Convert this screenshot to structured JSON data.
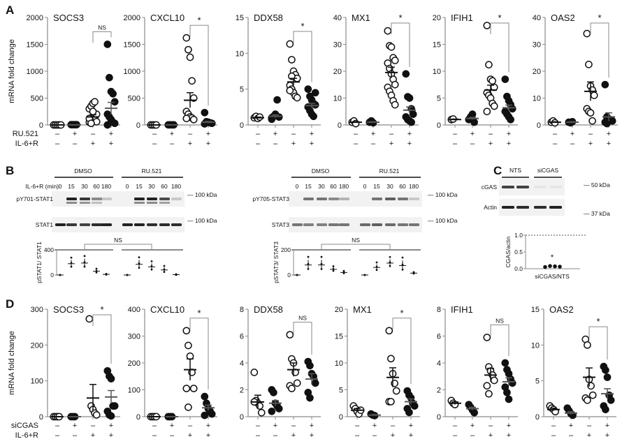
{
  "panel_letters": {
    "a": "A",
    "b": "B",
    "c": "C",
    "d": "D"
  },
  "chart_data": [
    {
      "type": "scatter",
      "panel": "A",
      "ylabel": "mRNA fold change",
      "row_labels": [
        "RU.521",
        "IL-6+R"
      ],
      "row_signs": [
        [
          "–",
          "+",
          "–",
          "+"
        ],
        [
          "–",
          "–",
          "+",
          "+"
        ]
      ],
      "group_fill": [
        "open",
        "filled",
        "open",
        "filled"
      ],
      "plots": [
        {
          "title": "SOCS3",
          "ylim": [
            0,
            2000
          ],
          "ticks": [
            0,
            500,
            1000,
            1500,
            2000
          ],
          "sig": "NS",
          "groups": [
            [
              0,
              0,
              0,
              0,
              0
            ],
            [
              5,
              5,
              5,
              5
            ],
            [
              50,
              80,
              100,
              150,
              200,
              300,
              350,
              400,
              430,
              60,
              120,
              30,
              250
            ],
            [
              1500,
              880,
              620,
              580,
              430,
              200,
              150,
              100,
              50,
              30,
              0
            ]
          ],
          "mean": [
            0,
            2,
            150,
            310
          ],
          "sem": [
            0,
            1,
            40,
            110
          ]
        },
        {
          "title": "CXCL10",
          "ylim": [
            0,
            2000
          ],
          "ticks": [
            0,
            500,
            1000,
            1500,
            2000
          ],
          "sig": "*",
          "groups": [
            [
              0,
              0,
              0,
              0
            ],
            [
              2,
              2,
              2,
              2
            ],
            [
              1620,
              1400,
              1260,
              820,
              500,
              250,
              200,
              150,
              130,
              100,
              120
            ],
            [
              230,
              60,
              50,
              40,
              30,
              20
            ]
          ],
          "mean": [
            0,
            2,
            460,
            50
          ],
          "sem": [
            0,
            0,
            140,
            15
          ]
        },
        {
          "title": "DDX58",
          "ylim": [
            0,
            15
          ],
          "ticks": [
            0,
            5,
            10,
            15
          ],
          "sig": "*",
          "groups": [
            [
              1,
              1.2,
              0.9,
              1.1
            ],
            [
              1,
              1.2,
              1.5,
              3.5,
              1.1,
              0.8
            ],
            [
              11.3,
              9.1,
              7.5,
              7,
              6.5,
              5.5,
              5,
              4.5,
              4,
              3.8,
              4.8,
              6.8
            ],
            [
              5,
              4,
              3.5,
              3,
              2.8,
              2.5,
              2,
              1.5,
              1.2,
              4.5
            ]
          ],
          "mean": [
            1,
            1.2,
            6,
            2.7
          ],
          "sem": [
            0.1,
            0.2,
            0.5,
            0.3
          ]
        },
        {
          "title": "MX1",
          "ylim": [
            0,
            40
          ],
          "ticks": [
            0,
            10,
            20,
            30,
            40
          ],
          "sig": "*",
          "groups": [
            [
              1,
              1.5,
              0.5
            ],
            [
              1,
              1.5,
              0.8
            ],
            [
              35,
              29.5,
              29,
              25,
              24,
              23,
              21,
              19,
              17,
              15,
              14,
              12.5,
              11,
              9,
              7.5
            ],
            [
              19,
              10.5,
              10,
              6,
              4,
              3,
              2,
              1.5,
              1
            ]
          ],
          "mean": [
            1,
            1,
            19.5,
            5.5
          ],
          "sem": [
            0.2,
            0.2,
            2,
            1.2
          ]
        },
        {
          "title": "IFIH1",
          "ylim": [
            0,
            20
          ],
          "ticks": [
            0,
            5,
            10,
            15,
            20
          ],
          "sig": "*",
          "groups": [
            [
              1,
              1.1
            ],
            [
              1,
              1.5,
              2,
              0.5
            ],
            [
              18.5,
              11.2,
              8.5,
              8.2,
              7,
              6,
              5.5,
              5,
              4,
              3.5,
              2.5
            ],
            [
              8.5,
              5.3,
              4.5,
              3.8,
              3,
              2.5,
              2,
              1.5,
              1
            ]
          ],
          "mean": [
            1,
            1.2,
            6.5,
            3.2
          ],
          "sem": [
            0.1,
            0.2,
            0.9,
            0.5
          ]
        },
        {
          "title": "OAS2",
          "ylim": [
            0,
            40
          ],
          "ticks": [
            0,
            10,
            20,
            30,
            40
          ],
          "sig": "*",
          "groups": [
            [
              1,
              1.5,
              0.8
            ],
            [
              1,
              0.8,
              1.2
            ],
            [
              34,
              22.5,
              14.5,
              13,
              11,
              6,
              5,
              4.5,
              1.5
            ],
            [
              15,
              3,
              2,
              2,
              1.5,
              1,
              0.5
            ]
          ],
          "mean": [
            1,
            1,
            12.5,
            3
          ],
          "sem": [
            0.2,
            0.2,
            3.5,
            1.5
          ]
        }
      ]
    },
    {
      "type": "scatter",
      "panel": "D",
      "ylabel": "mRNA fold change",
      "row_labels": [
        "siCGAS",
        "IL-6+R"
      ],
      "row_signs": [
        [
          "–",
          "+",
          "–",
          "+"
        ],
        [
          "–",
          "–",
          "+",
          "+"
        ]
      ],
      "group_fill": [
        "open",
        "filled",
        "open",
        "filled"
      ],
      "plots": [
        {
          "title": "SOCS3",
          "ylim": [
            0,
            300
          ],
          "ticks": [
            0,
            100,
            200,
            300
          ],
          "sig": "*",
          "groups": [
            [
              0,
              0,
              0,
              0
            ],
            [
              0,
              0,
              0
            ],
            [
              273,
              30,
              20,
              10,
              5
            ],
            [
              128,
              113,
              106,
              30,
              30,
              15,
              5,
              2
            ]
          ],
          "mean": [
            0,
            0,
            52,
            55
          ],
          "sem": [
            0,
            0,
            38,
            18
          ]
        },
        {
          "title": "CXCL10",
          "ylim": [
            0,
            400
          ],
          "ticks": [
            0,
            100,
            200,
            300,
            400
          ],
          "sig": "*",
          "groups": [
            [
              0,
              0,
              0,
              0
            ],
            [
              0,
              0,
              0
            ],
            [
              320,
              265,
              225,
              165,
              105,
              105,
              35
            ],
            [
              75,
              50,
              30,
              20,
              10,
              5
            ]
          ],
          "mean": [
            0,
            0,
            175,
            33
          ],
          "sem": [
            0,
            0,
            40,
            10
          ]
        },
        {
          "title": "DDX58",
          "ylim": [
            0,
            8
          ],
          "ticks": [
            0,
            2,
            4,
            6,
            8
          ],
          "sig": "NS",
          "groups": [
            [
              3.3,
              1.2,
              1,
              0.8,
              0.3,
              1.1
            ],
            [
              2,
              1.8,
              1,
              0.8,
              0.6,
              0.4
            ],
            [
              6.1,
              4.3,
              4,
              3.3,
              2.5,
              2.3,
              2.1
            ],
            [
              4.1,
              3.8,
              3.2,
              3,
              2.5,
              1.8,
              1.4
            ]
          ],
          "mean": [
            1.1,
            1,
            3.5,
            2.8
          ],
          "sem": [
            0.5,
            0.2,
            0.5,
            0.4
          ]
        },
        {
          "title": "MX1",
          "ylim": [
            0,
            20
          ],
          "ticks": [
            0,
            5,
            10,
            15,
            20
          ],
          "sig": "*",
          "groups": [
            [
              2,
              1.5,
              1,
              0.5,
              1.2
            ],
            [
              0.5,
              0.3,
              0.2
            ],
            [
              16,
              10.8,
              8,
              6.2,
              4.8,
              2.8,
              2.8
            ],
            [
              4.8,
              4,
              3.5,
              2.5,
              2,
              1.5,
              0.8
            ]
          ],
          "mean": [
            1.2,
            0.3,
            7.3,
            2.8
          ],
          "sem": [
            0.3,
            0.1,
            1.8,
            0.5
          ]
        },
        {
          "title": "IFIH1",
          "ylim": [
            0,
            8
          ],
          "ticks": [
            0,
            2,
            4,
            6,
            8
          ],
          "sig": "NS",
          "groups": [
            [
              1.2,
              1,
              0.9
            ],
            [
              0.9,
              0.7,
              0.5,
              0.3
            ],
            [
              5.9,
              3.7,
              3.4,
              3.1,
              2.7,
              2.3,
              1.7
            ],
            [
              4,
              3.5,
              3.2,
              2.8,
              2.5,
              2.2,
              1.8,
              1.3
            ]
          ],
          "mean": [
            1,
            0.6,
            3.1,
            2.6
          ],
          "sem": [
            0.1,
            0.1,
            0.5,
            0.3
          ]
        },
        {
          "title": "OAS2",
          "ylim": [
            0,
            15
          ],
          "ticks": [
            0,
            5,
            10,
            15
          ],
          "sig": "*",
          "groups": [
            [
              1.5,
              1.2,
              1,
              0.7
            ],
            [
              1.2,
              0.8,
              0.4,
              0.2
            ],
            [
              10.8,
              10,
              5.2,
              4.3,
              3,
              2.6,
              2.3
            ],
            [
              7,
              6.5,
              5.5,
              3,
              2.3,
              1.5,
              1
            ]
          ],
          "mean": [
            1,
            0.5,
            5.5,
            3.2
          ],
          "sem": [
            0.2,
            0.2,
            1.3,
            0.7
          ]
        }
      ]
    }
  ],
  "blots_b": {
    "time_label": "IL-6+R (min)",
    "timepoints": [
      "0",
      "15",
      "30",
      "60",
      "180",
      "0",
      "15",
      "30",
      "60",
      "180"
    ],
    "conditions": [
      "DMSO",
      "RU.521"
    ],
    "stat1": {
      "bands": [
        {
          "label": "pY701-STAT1",
          "marker": "— 100 kDa",
          "intensity": [
            0,
            1,
            0.9,
            0.5,
            0.2,
            0,
            1,
            1,
            0.8,
            0.2
          ]
        },
        {
          "label": "STAT1",
          "marker": "— 100 kDa",
          "intensity": [
            1,
            0.9,
            0.85,
            0.95,
            1,
            1,
            1,
            0.95,
            0.95,
            0.95
          ]
        }
      ],
      "quant": {
        "ylabel": "pSTAT1/ STAT1",
        "ylim": [
          0,
          400
        ],
        "ticks": [
          0,
          400
        ],
        "sig": "NS",
        "mean": [
          0,
          180,
          190,
          60,
          10,
          0,
          170,
          130,
          80,
          5
        ],
        "sem": [
          0,
          60,
          70,
          25,
          5,
          0,
          70,
          55,
          40,
          5
        ]
      }
    },
    "stat3": {
      "bands": [
        {
          "label": "pY705-STAT3",
          "marker": "— 100 kDa",
          "intensity": [
            0,
            0.6,
            0.6,
            0.5,
            0.3,
            0,
            0.6,
            0.7,
            0.6,
            0.2
          ]
        },
        {
          "label": "STAT3",
          "marker": "— 100 kDa",
          "intensity": [
            0.6,
            0.55,
            0.55,
            0.6,
            0.6,
            0.65,
            0.7,
            0.65,
            0.6,
            0.6
          ]
        }
      ],
      "quant": {
        "ylabel": "pSTAT3/ STAT3",
        "ylim": [
          0,
          200
        ],
        "ticks": [
          0,
          200
        ],
        "sig": "NS",
        "mean": [
          0,
          80,
          80,
          45,
          20,
          0,
          60,
          95,
          75,
          15
        ],
        "sem": [
          0,
          40,
          40,
          15,
          8,
          0,
          25,
          30,
          40,
          5
        ]
      }
    }
  },
  "blot_c": {
    "conditions": [
      "NTS",
      "siCGAS"
    ],
    "bands": [
      {
        "label": "cGAS",
        "marker": "— 50 kDa",
        "intensity": [
          0.85,
          0.85,
          0.05,
          0.05
        ]
      },
      {
        "label": "Actin",
        "marker": "— 37 kDa",
        "intensity": [
          1,
          0.95,
          0.95,
          1
        ]
      }
    ],
    "quant": {
      "ylabel": "CGAS/actin",
      "xlabel": "siCGAS/NTS",
      "ylim": [
        0,
        1.0
      ],
      "ticks": [
        "0.0",
        "0.5",
        "1.0"
      ],
      "points": [
        0.03,
        0.06,
        0.05,
        0.04
      ],
      "reference_line": 1.0,
      "sig": "*"
    }
  }
}
